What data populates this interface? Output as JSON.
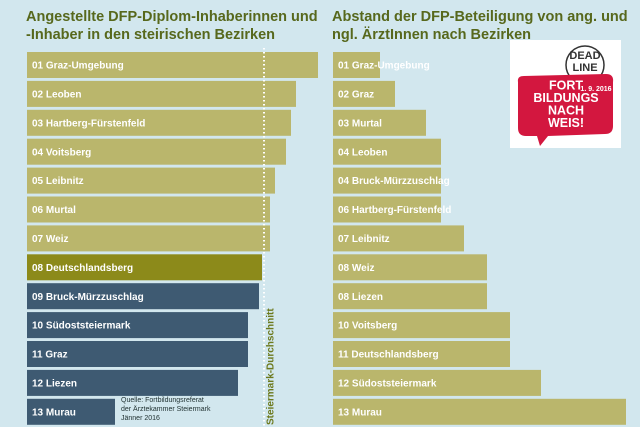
{
  "chart_data": [
    {
      "type": "bar",
      "title": [
        "Angestellte DFP-Diplom-Inhaberinnen und",
        "-Inhaber in den steirischen Bezirken"
      ],
      "categories": [
        "01 Graz-Umgebung",
        "02 Leoben",
        "03 Hartberg-Fürstenfeld",
        "04 Voitsberg",
        "05 Leibnitz",
        "06 Murtal",
        "07 Weiz",
        "08 Deutschlandsberg",
        "09 Bruck-Mürzzuschlag",
        "10 Südoststeiermark",
        "11 Graz",
        "12 Liezen",
        "13 Murau"
      ],
      "values": [
        291,
        269,
        264,
        259,
        248,
        243,
        243,
        235,
        232,
        221,
        221,
        211,
        88
      ],
      "colors": [
        "#bab66c",
        "#bab66c",
        "#bab66c",
        "#bab66c",
        "#bab66c",
        "#bab66c",
        "#bab66c",
        "#8c8a1a",
        "#3e5a72",
        "#3e5a72",
        "#3e5a72",
        "#3e5a72",
        "#3e5a72"
      ],
      "reference_line": {
        "label": "Steiermark-Durchschnitt",
        "value": 237
      },
      "source": [
        "Quelle: Fortbildungsreferat",
        "der Ärztekammer Steiermark",
        "Jänner 2016"
      ]
    },
    {
      "type": "bar",
      "title": [
        "Abstand der DFP-Beteiligung von ang. und",
        "ngl. ÄrztInnen nach Bezirken"
      ],
      "categories": [
        "01 Graz-Umgebung",
        "02 Graz",
        "03 Murtal",
        "04 Leoben",
        "04 Bruck-Mürzzuschlag",
        "06 Hartberg-Fürstenfeld",
        "07 Leibnitz",
        "08 Weiz",
        "08 Liezen",
        "10 Voitsberg",
        "11 Deutschlandsberg",
        "12 Südoststeiermark",
        "13 Murau"
      ],
      "values": [
        47,
        62,
        93,
        108,
        108,
        108,
        131,
        154,
        154,
        177,
        177,
        208,
        293
      ],
      "color": "#bab66c"
    }
  ],
  "logo": {
    "deadline": [
      "DEAD",
      "LINE"
    ],
    "date": "1. 9. 2016",
    "lines": [
      "FORT",
      "BILDUNGS",
      "NACH",
      "WEIS!"
    ]
  }
}
